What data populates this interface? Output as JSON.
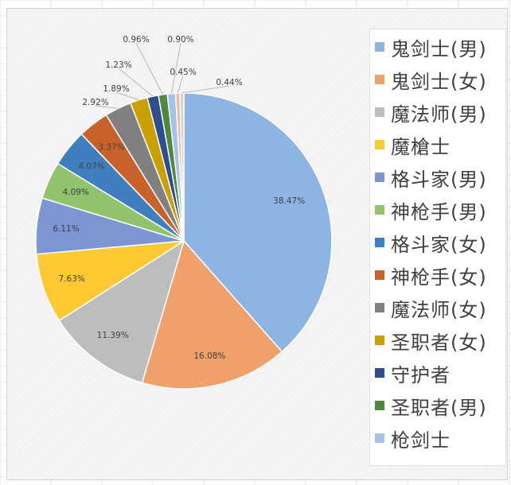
{
  "chart_data": {
    "type": "pie",
    "title": "",
    "legend_position": "right",
    "slices": [
      {
        "label": "鬼剑士(男)",
        "value": 38.47,
        "display": "38.47%",
        "color": "#8db4e2"
      },
      {
        "label": "鬼剑士(女)",
        "value": 16.08,
        "display": "16.08%",
        "color": "#f0a06a"
      },
      {
        "label": "魔法师(男)",
        "value": 11.39,
        "display": "11.39%",
        "color": "#bdbdbd"
      },
      {
        "label": "魔槍士",
        "value": 7.63,
        "display": "7.63%",
        "color": "#ffc933"
      },
      {
        "label": "格斗家(男)",
        "value": 6.11,
        "display": "6.11%",
        "color": "#7b96d2"
      },
      {
        "label": "神枪手(男)",
        "value": 4.09,
        "display": "4.09%",
        "color": "#90c36c"
      },
      {
        "label": "格斗家(女)",
        "value": 4.07,
        "display": "4.07%",
        "color": "#3f7fc0"
      },
      {
        "label": "神枪手(女)",
        "value": 3.37,
        "display": "3.37%",
        "color": "#c8622a"
      },
      {
        "label": "魔法师(女)",
        "value": 2.92,
        "display": "2.92%",
        "color": "#808080"
      },
      {
        "label": "圣职者(女)",
        "value": 1.89,
        "display": "1.89%",
        "color": "#c9a000"
      },
      {
        "label": "守护者",
        "value": 1.23,
        "display": "1.23%",
        "color": "#2f4e8f"
      },
      {
        "label": "圣职者(男)",
        "value": 0.96,
        "display": "0.96%",
        "color": "#4d8a3a"
      },
      {
        "label": "枪剑士",
        "value": 0.9,
        "display": "0.90%",
        "color": "#a3c4ea"
      },
      {
        "label": "",
        "value": 0.45,
        "display": "0.45%",
        "color": "#f4b894"
      },
      {
        "label": "",
        "value": 0.44,
        "display": "0.44%",
        "color": "#d3d3d3"
      }
    ]
  }
}
